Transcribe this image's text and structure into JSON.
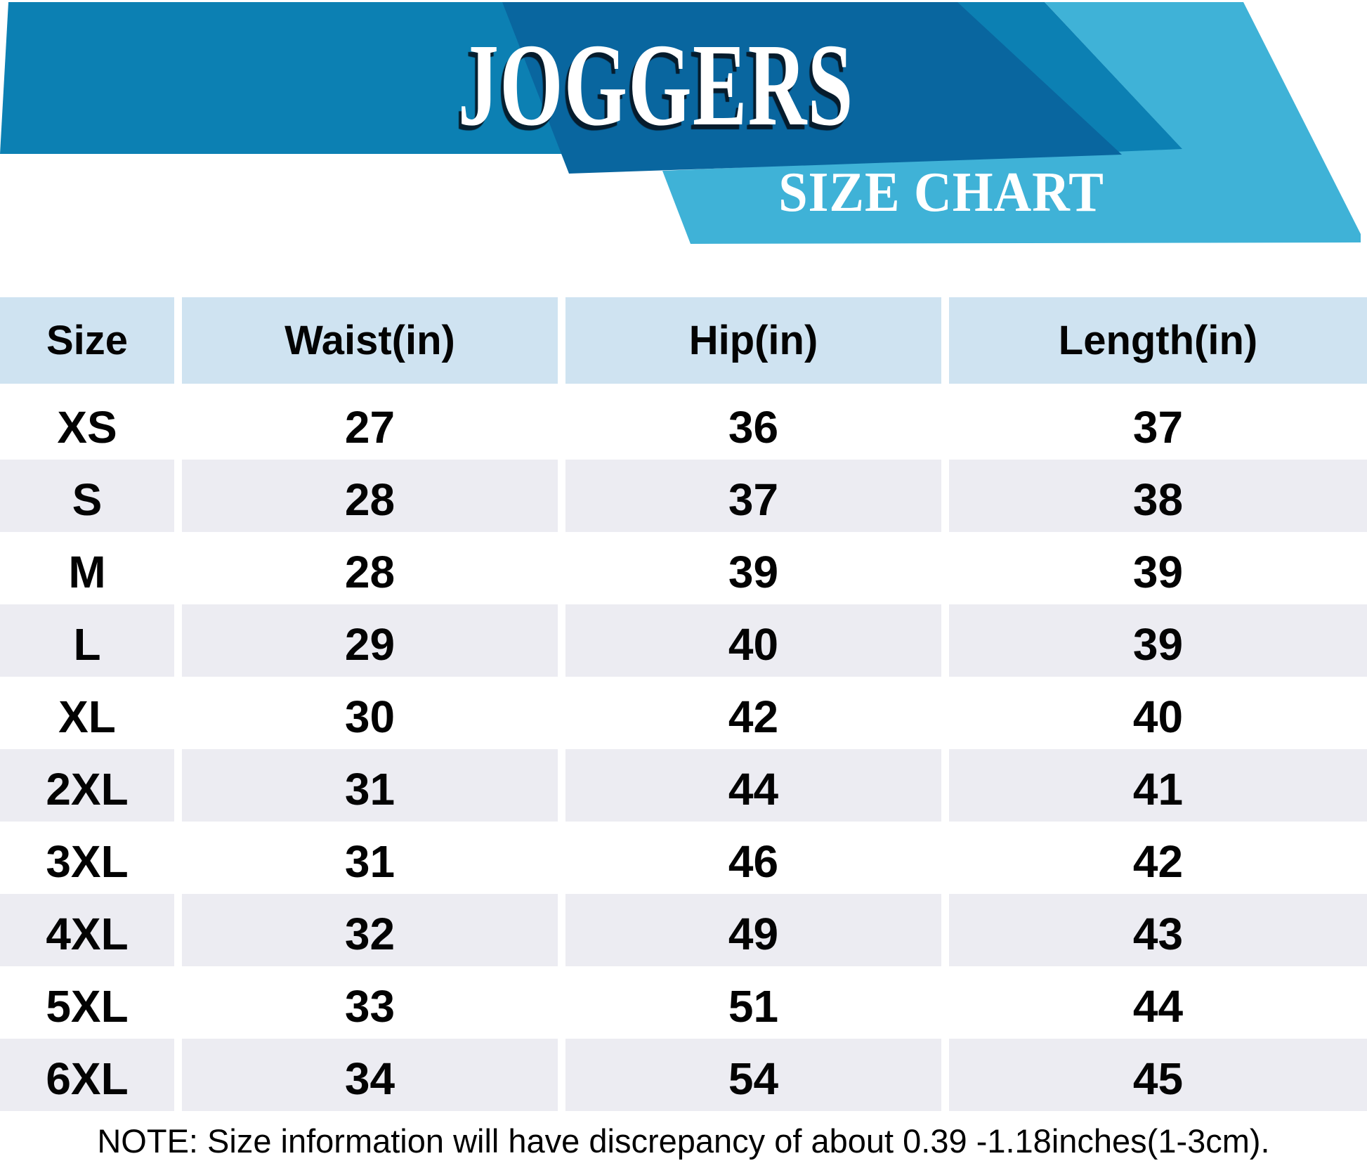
{
  "header": {
    "title": "JOGGERS",
    "subtitle": "SIZE CHART",
    "colors": {
      "medium_blue": "#0c80b3",
      "dark_blue": "#09669f",
      "light_blue": "#3fb2d7"
    }
  },
  "table": {
    "columns": [
      "Size",
      "Waist(in)",
      "Hip(in)",
      "Length(in)"
    ],
    "rows": [
      [
        "XS",
        "27",
        "36",
        "37"
      ],
      [
        "S",
        "28",
        "37",
        "38"
      ],
      [
        "M",
        "28",
        "39",
        "39"
      ],
      [
        "L",
        "29",
        "40",
        "39"
      ],
      [
        "XL",
        "30",
        "42",
        "40"
      ],
      [
        "2XL",
        "31",
        "44",
        "41"
      ],
      [
        "3XL",
        "31",
        "46",
        "42"
      ],
      [
        "4XL",
        "32",
        "49",
        "43"
      ],
      [
        "5XL",
        "33",
        "51",
        "44"
      ],
      [
        "6XL",
        "34",
        "54",
        "45"
      ]
    ],
    "header_bg": "#cfe3f1",
    "alt_row_bg": "#ececf2"
  },
  "note": "NOTE: Size information will have discrepancy of about 0.39 -1.18inches(1-3cm).",
  "chart_data": {
    "type": "table",
    "title": "JOGGERS",
    "subtitle": "SIZE CHART",
    "columns": [
      "Size",
      "Waist(in)",
      "Hip(in)",
      "Length(in)"
    ],
    "rows": [
      {
        "size": "XS",
        "waist_in": 27,
        "hip_in": 36,
        "length_in": 37
      },
      {
        "size": "S",
        "waist_in": 28,
        "hip_in": 37,
        "length_in": 38
      },
      {
        "size": "M",
        "waist_in": 28,
        "hip_in": 39,
        "length_in": 39
      },
      {
        "size": "L",
        "waist_in": 29,
        "hip_in": 40,
        "length_in": 39
      },
      {
        "size": "XL",
        "waist_in": 30,
        "hip_in": 42,
        "length_in": 40
      },
      {
        "size": "2XL",
        "waist_in": 31,
        "hip_in": 44,
        "length_in": 41
      },
      {
        "size": "3XL",
        "waist_in": 31,
        "hip_in": 46,
        "length_in": 42
      },
      {
        "size": "4XL",
        "waist_in": 32,
        "hip_in": 49,
        "length_in": 43
      },
      {
        "size": "5XL",
        "waist_in": 33,
        "hip_in": 51,
        "length_in": 44
      },
      {
        "size": "6XL",
        "waist_in": 34,
        "hip_in": 54,
        "length_in": 45
      }
    ],
    "note": "NOTE: Size information will have discrepancy of about 0.39 -1.18inches(1-3cm)."
  }
}
